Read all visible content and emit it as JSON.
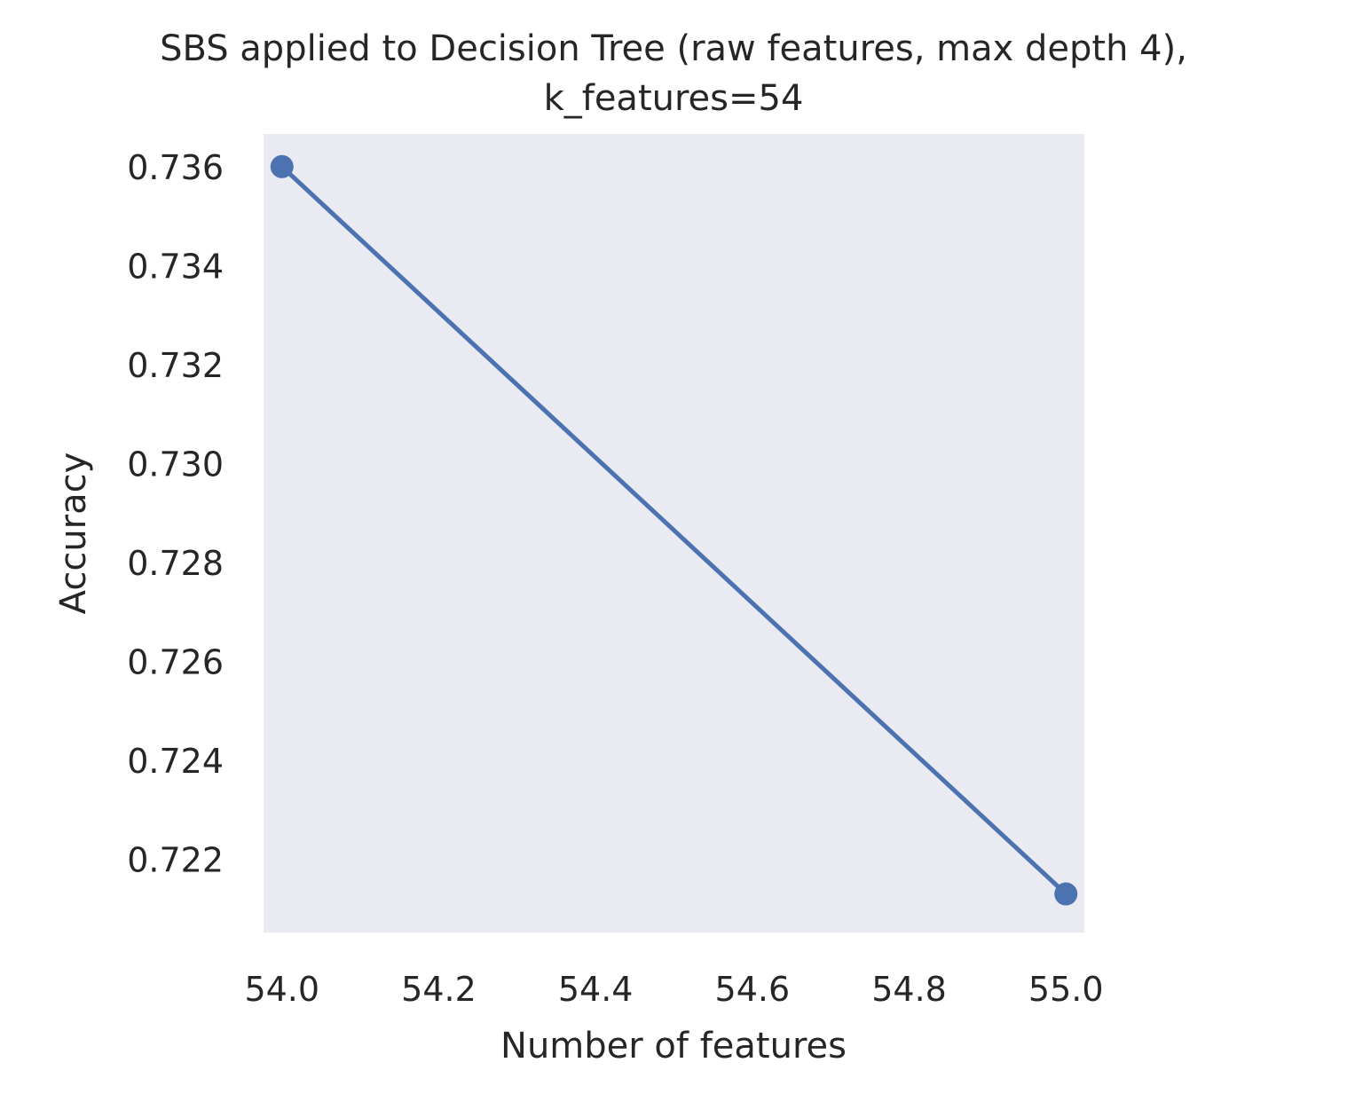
{
  "chart_data": {
    "type": "line",
    "title_lines": [
      "SBS applied to Decision Tree (raw features, max depth 4),",
      "k_features=54"
    ],
    "xlabel": "Number of features",
    "ylabel": "Accuracy",
    "xlim": [
      53.9765,
      55.0235
    ],
    "ylim": [
      0.72052,
      0.73666
    ],
    "xticks": [
      54.0,
      54.2,
      54.4,
      54.6,
      54.8,
      55.0
    ],
    "xtick_labels": [
      "54.0",
      "54.2",
      "54.4",
      "54.6",
      "54.8",
      "55.0"
    ],
    "yticks": [
      0.722,
      0.724,
      0.726,
      0.728,
      0.73,
      0.732,
      0.734,
      0.736
    ],
    "ytick_labels": [
      "0.722",
      "0.724",
      "0.726",
      "0.728",
      "0.730",
      "0.732",
      "0.734",
      "0.736"
    ],
    "grid": false,
    "series": [
      {
        "name": "Accuracy",
        "x": [
          54,
          55
        ],
        "values": [
          0.736,
          0.7213
        ],
        "marker": "circle"
      }
    ],
    "colors": {
      "plot_background": "#eaeaf2",
      "line": "#4c72b0",
      "text": "#262626"
    }
  }
}
